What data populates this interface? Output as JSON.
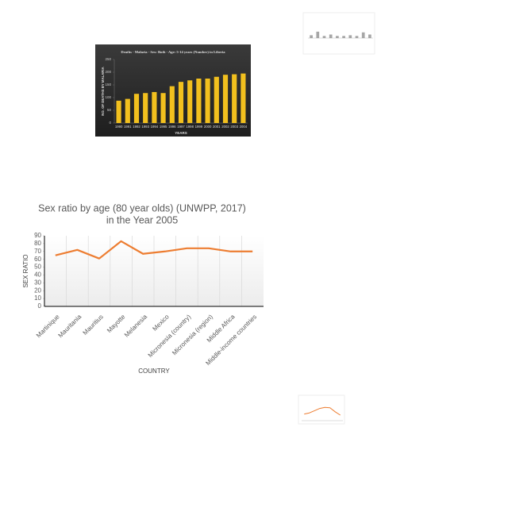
{
  "chart_data": [
    {
      "type": "bar",
      "title": "Deaths - Malaria - Sex: Both - Age: 5-14 years (Number) in Liberia",
      "x_label": "YEARS",
      "y_label": "NO. OF DEATHS BY MALARIA",
      "categories": [
        "1990",
        "1991",
        "1992",
        "1993",
        "1994",
        "1995",
        "1996",
        "1997",
        "1998",
        "1999",
        "2000",
        "2001",
        "2002",
        "2003",
        "2004"
      ],
      "values": [
        88,
        95,
        115,
        118,
        122,
        118,
        145,
        162,
        168,
        175,
        175,
        182,
        190,
        192,
        195
      ],
      "color": "#f2c01e",
      "ylim": [
        0,
        250
      ],
      "yticks": [
        0,
        50,
        100,
        150,
        200,
        250
      ]
    },
    {
      "type": "line",
      "title": "Sex ratio by age (80 year olds) (UNWPP, 2017)",
      "subtitle": "in the Year 2005",
      "x_label": "COUNTRY",
      "y_label": "SEX RATIO",
      "categories": [
        "Martinique",
        "Mauritania",
        "Mauritius",
        "Mayotte",
        "Melanesia",
        "Mexico",
        "Micronesia (country)",
        "Micronesia (region)",
        "Middle Africa",
        "Middle-income countries"
      ],
      "values": [
        65,
        72,
        61,
        83,
        67,
        70,
        74,
        74,
        70,
        70
      ],
      "color": "#ed7d31",
      "ylim": [
        0,
        90
      ],
      "yticks": [
        0,
        10,
        20,
        30,
        40,
        50,
        60,
        70,
        80,
        90
      ],
      "grid": true
    },
    {
      "type": "bar",
      "values": [
        20,
        45,
        15,
        25,
        15,
        15,
        20,
        15,
        40,
        25
      ],
      "color": "#a6a6a6",
      "ylim": [
        0,
        100
      ]
    },
    {
      "type": "line",
      "values": [
        30,
        35,
        45,
        55,
        60,
        58,
        40,
        25
      ],
      "color": "#ed7d31",
      "ylim": [
        0,
        100
      ]
    }
  ]
}
